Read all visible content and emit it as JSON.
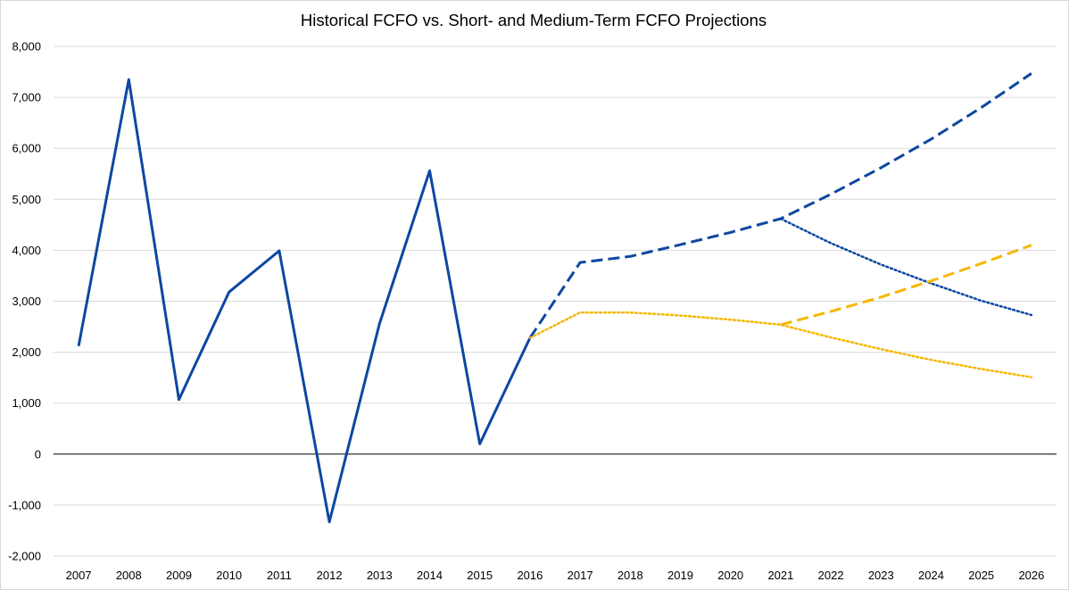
{
  "chart_data": {
    "type": "line",
    "title": "Historical FCFO vs. Short- and Medium-Term FCFO Projections",
    "xlabel": "",
    "ylabel": "",
    "categories": [
      "2007",
      "2008",
      "2009",
      "2010",
      "2011",
      "2012",
      "2013",
      "2014",
      "2015",
      "2016",
      "2017",
      "2018",
      "2019",
      "2020",
      "2021",
      "2022",
      "2023",
      "2024",
      "2025",
      "2026"
    ],
    "ylim": [
      -2000,
      8000
    ],
    "yticks": [
      -2000,
      -1000,
      0,
      1000,
      2000,
      3000,
      4000,
      5000,
      6000,
      7000,
      8000
    ],
    "ytick_labels": [
      "-2,000",
      "-1,000",
      "0",
      "1,000",
      "2,000",
      "3,000",
      "4,000",
      "5,000",
      "6,000",
      "7,000",
      "8,000"
    ],
    "grid": true,
    "legend": "none",
    "series": [
      {
        "style": "solid",
        "color": "#0d47a1",
        "values": [
          2120,
          7350,
          1070,
          3180,
          3990,
          -1330,
          2560,
          5560,
          200,
          2280,
          null,
          null,
          null,
          null,
          null,
          null,
          null,
          null,
          null,
          null
        ]
      },
      {
        "style": "dashed",
        "color": "#0d47a1",
        "values": [
          null,
          null,
          null,
          null,
          null,
          null,
          null,
          null,
          null,
          2280,
          3760,
          3880,
          4110,
          4350,
          4620,
          5100,
          5620,
          6180,
          6800,
          7470
        ]
      },
      {
        "style": "dotted",
        "color": "#0d47a1",
        "values": [
          null,
          null,
          null,
          null,
          null,
          null,
          null,
          null,
          null,
          null,
          null,
          null,
          null,
          null,
          4620,
          4140,
          3720,
          3350,
          3010,
          2730
        ]
      },
      {
        "style": "dotted",
        "color": "#f5b800",
        "values": [
          null,
          null,
          null,
          null,
          null,
          null,
          null,
          null,
          null,
          2280,
          2780,
          2780,
          2720,
          2640,
          2540,
          2290,
          2060,
          1850,
          1670,
          1510
        ]
      },
      {
        "style": "dashed",
        "color": "#f5b800",
        "values": [
          null,
          null,
          null,
          null,
          null,
          null,
          null,
          null,
          null,
          null,
          null,
          null,
          null,
          null,
          2540,
          2800,
          3080,
          3400,
          3740,
          4100
        ]
      }
    ]
  }
}
